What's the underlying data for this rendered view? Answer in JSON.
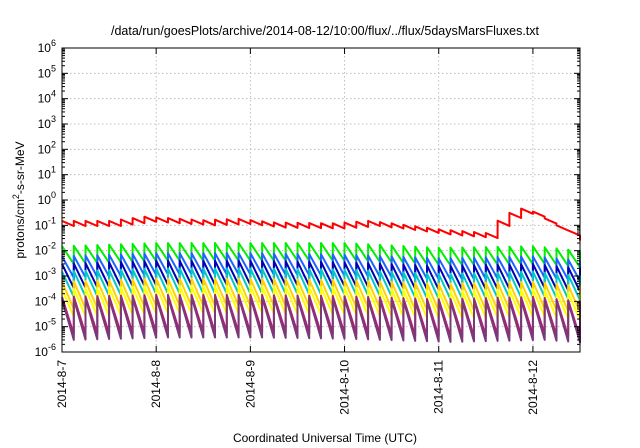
{
  "chart_data": {
    "type": "line",
    "title": "/data/run/goesPlots/archive/2014-08-12/10:00/flux/../flux/5daysMarsFluxes.txt",
    "xlabel": "Coordinated Universal Time (UTC)",
    "ylabel": "protons/cm²-s-sr-MeV",
    "ylabel_base": "protons/cm",
    "ylabel_sup": "2",
    "ylabel_rest": "-s-sr-MeV",
    "yscale": "log",
    "ylim": [
      1e-06,
      1000000.0
    ],
    "xlim_days": [
      "2014-08-07T00:00",
      "2014-08-12T12:00"
    ],
    "xtick_labels": [
      "2014-8-7",
      "2014-8-8",
      "2014-8-9",
      "2014-8-10",
      "2014-8-11",
      "2014-8-12"
    ],
    "ytick_exponents": [
      -6,
      -5,
      -4,
      -3,
      -2,
      -1,
      0,
      1,
      2,
      3,
      4,
      5,
      6
    ],
    "grid": true,
    "sawtooth_period_hours": 3,
    "series": [
      {
        "color": "#ff0000",
        "peak_decay_factor": 1.6,
        "hourly_points": [
          [
            "2014-08-07T00:00",
            0.15
          ],
          [
            "2014-08-07T12:00",
            0.15
          ],
          [
            "2014-08-07T21:00",
            0.22
          ],
          [
            "2014-08-08T12:00",
            0.16
          ],
          [
            "2014-08-08T21:00",
            0.18
          ],
          [
            "2014-08-09T06:00",
            0.13
          ],
          [
            "2014-08-09T21:00",
            0.12
          ],
          [
            "2014-08-10T06:00",
            0.15
          ],
          [
            "2014-08-10T12:00",
            0.12
          ],
          [
            "2014-08-11T00:00",
            0.07
          ],
          [
            "2014-08-11T12:00",
            0.05
          ],
          [
            "2014-08-11T14:00",
            0.12
          ],
          [
            "2014-08-11T20:00",
            0.5
          ],
          [
            "2014-08-12T00:00",
            0.35
          ],
          [
            "2014-08-12T06:00",
            0.1
          ],
          [
            "2014-08-12T12:00",
            0.04
          ]
        ]
      },
      {
        "color": "#00ee00",
        "peak_decay_factor": 5,
        "hourly_points": [
          [
            "2014-08-07T00:00",
            0.015
          ],
          [
            "2014-08-08T00:00",
            0.02
          ],
          [
            "2014-08-09T00:00",
            0.02
          ],
          [
            "2014-08-10T00:00",
            0.02
          ],
          [
            "2014-08-11T00:00",
            0.013
          ],
          [
            "2014-08-12T00:00",
            0.015
          ],
          [
            "2014-08-12T12:00",
            0.01
          ]
        ]
      },
      {
        "color": "#1e64ff",
        "peak_decay_factor": 7,
        "hourly_points": [
          [
            "2014-08-07T00:00",
            0.006
          ],
          [
            "2014-08-08T00:00",
            0.008
          ],
          [
            "2014-08-09T00:00",
            0.008
          ],
          [
            "2014-08-10T00:00",
            0.007
          ],
          [
            "2014-08-11T00:00",
            0.005
          ],
          [
            "2014-08-12T00:00",
            0.006
          ],
          [
            "2014-08-12T12:00",
            0.004
          ]
        ]
      },
      {
        "color": "#0000b4",
        "peak_decay_factor": 9,
        "hourly_points": [
          [
            "2014-08-07T00:00",
            0.003
          ],
          [
            "2014-08-08T00:00",
            0.004
          ],
          [
            "2014-08-09T00:00",
            0.004
          ],
          [
            "2014-08-10T00:00",
            0.0035
          ],
          [
            "2014-08-11T00:00",
            0.0025
          ],
          [
            "2014-08-12T00:00",
            0.003
          ],
          [
            "2014-08-12T12:00",
            0.002
          ]
        ]
      },
      {
        "color": "#00c8c8",
        "peak_decay_factor": 10,
        "hourly_points": [
          [
            "2014-08-07T00:00",
            0.0015
          ],
          [
            "2014-08-08T00:00",
            0.002
          ],
          [
            "2014-08-09T00:00",
            0.002
          ],
          [
            "2014-08-10T00:00",
            0.0018
          ],
          [
            "2014-08-11T00:00",
            0.0012
          ],
          [
            "2014-08-12T00:00",
            0.0015
          ],
          [
            "2014-08-12T12:00",
            0.001
          ]
        ]
      },
      {
        "color": "#ffd200",
        "peak_decay_factor": 12,
        "hourly_points": [
          [
            "2014-08-07T00:00",
            0.0006
          ],
          [
            "2014-08-08T00:00",
            0.0008
          ],
          [
            "2014-08-09T00:00",
            0.0008
          ],
          [
            "2014-08-10T00:00",
            0.0007
          ],
          [
            "2014-08-11T00:00",
            0.0005
          ],
          [
            "2014-08-12T00:00",
            0.0006
          ],
          [
            "2014-08-12T12:00",
            0.0004
          ]
        ]
      },
      {
        "color": "#ffff00",
        "peak_decay_factor": 12,
        "hourly_points": [
          [
            "2014-08-07T00:00",
            0.0003
          ],
          [
            "2014-08-08T00:00",
            0.0004
          ],
          [
            "2014-08-09T00:00",
            0.0004
          ],
          [
            "2014-08-10T00:00",
            0.00035
          ],
          [
            "2014-08-11T00:00",
            0.00025
          ],
          [
            "2014-08-12T00:00",
            0.0003
          ],
          [
            "2014-08-12T12:00",
            0.0002
          ]
        ]
      },
      {
        "color": "#b41e6e",
        "peak_decay_factor": 30,
        "hourly_points": [
          [
            "2014-08-07T00:00",
            0.00015
          ],
          [
            "2014-08-08T00:00",
            0.00018
          ],
          [
            "2014-08-09T00:00",
            0.00018
          ],
          [
            "2014-08-10T00:00",
            0.00016
          ],
          [
            "2014-08-11T00:00",
            0.00012
          ],
          [
            "2014-08-12T00:00",
            0.00015
          ],
          [
            "2014-08-12T12:00",
            0.0001
          ]
        ]
      },
      {
        "color": "#7a3a7a",
        "peak_decay_factor": 40,
        "hourly_points": [
          [
            "2014-08-07T00:00",
            0.00012
          ],
          [
            "2014-08-08T00:00",
            0.00015
          ],
          [
            "2014-08-09T00:00",
            0.00015
          ],
          [
            "2014-08-10T00:00",
            0.00013
          ],
          [
            "2014-08-11T00:00",
            0.0001
          ],
          [
            "2014-08-12T00:00",
            0.00012
          ],
          [
            "2014-08-12T12:00",
            9e-05
          ]
        ]
      }
    ]
  }
}
